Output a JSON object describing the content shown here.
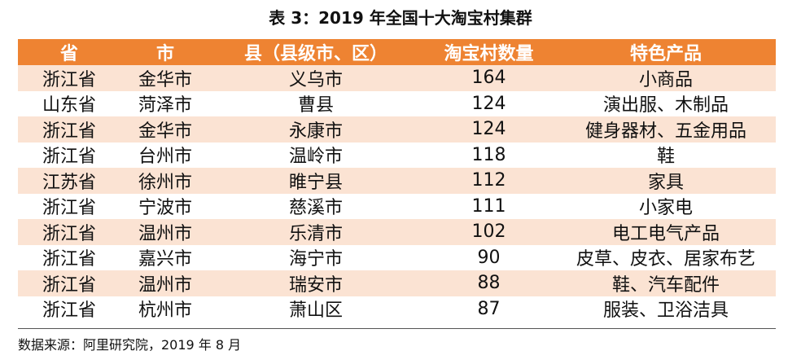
{
  "table": {
    "title": "表 3：2019 年全国十大淘宝村集群",
    "headers": [
      "省",
      "市",
      "县（县级市、区）",
      "淘宝村数量",
      "特色产品"
    ],
    "rows": [
      [
        "浙江省",
        "金华市",
        "义乌市",
        "164",
        "小商品"
      ],
      [
        "山东省",
        "菏泽市",
        "曹县",
        "124",
        "演出服、木制品"
      ],
      [
        "浙江省",
        "金华市",
        "永康市",
        "124",
        "健身器材、五金用品"
      ],
      [
        "浙江省",
        "台州市",
        "温岭市",
        "118",
        "鞋"
      ],
      [
        "江苏省",
        "徐州市",
        "睢宁县",
        "112",
        "家具"
      ],
      [
        "浙江省",
        "宁波市",
        "慈溪市",
        "111",
        "小家电"
      ],
      [
        "浙江省",
        "温州市",
        "乐清市",
        "102",
        "电工电气产品"
      ],
      [
        "浙江省",
        "嘉兴市",
        "海宁市",
        "90",
        "皮草、皮衣、居家布艺"
      ],
      [
        "浙江省",
        "温州市",
        "瑞安市",
        "88",
        "鞋、汽车配件"
      ],
      [
        "浙江省",
        "杭州市",
        "萧山区",
        "87",
        "服装、卫浴洁具"
      ]
    ],
    "source": "数据来源：阿里研究院，2019 年 8 月"
  },
  "colors": {
    "header_bg": "#ee8332",
    "band_bg": "#fbe3d3"
  }
}
